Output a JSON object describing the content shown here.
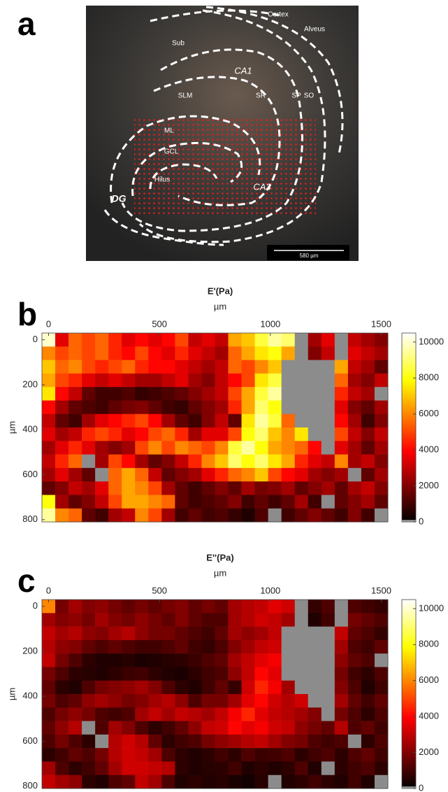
{
  "panel_a": {
    "letter": "a",
    "labels": [
      "Cortex",
      "Alveus",
      "Sub",
      "CA1",
      "SLM",
      "SR",
      "SP",
      "SO",
      "ML",
      "GCL",
      "Hilus",
      "CA3",
      "DG"
    ],
    "scale_bar": "580 µm"
  },
  "chart_data": [
    {
      "type": "heatmap",
      "letter": "b",
      "title": "E'(Pa)",
      "xlabel": "µm",
      "ylabel": "µm",
      "x": [
        0,
        60,
        120,
        180,
        240,
        300,
        360,
        420,
        480,
        540,
        600,
        660,
        720,
        780,
        840,
        900,
        960,
        1020,
        1080,
        1140,
        1200,
        1260,
        1320,
        1380,
        1440,
        1500
      ],
      "y": [
        0,
        60,
        120,
        180,
        240,
        300,
        360,
        420,
        480,
        540,
        600,
        660,
        720,
        780
      ],
      "values": [
        [
          10000,
          3500,
          5500,
          5000,
          5500,
          4500,
          3500,
          4000,
          3500,
          4000,
          5000,
          3000,
          3500,
          3000,
          6500,
          7000,
          8500,
          9500,
          9000,
          null,
          2500,
          3500,
          null,
          3000,
          2500,
          2000
        ],
        [
          6000,
          5000,
          5500,
          5000,
          5500,
          4500,
          4000,
          5000,
          4000,
          3500,
          4500,
          3500,
          3000,
          2500,
          5500,
          6500,
          7500,
          8000,
          6500,
          null,
          2000,
          3000,
          null,
          3500,
          3000,
          2500
        ],
        [
          7000,
          5500,
          6000,
          5000,
          4500,
          5000,
          5500,
          4500,
          4000,
          4000,
          3500,
          3000,
          2500,
          3000,
          5500,
          5000,
          6000,
          7000,
          null,
          null,
          null,
          null,
          6500,
          3000,
          2500,
          1500
        ],
        [
          6500,
          5000,
          4500,
          3500,
          3000,
          3500,
          3000,
          2500,
          2500,
          3000,
          3500,
          2500,
          2000,
          3000,
          4000,
          5000,
          7500,
          8500,
          null,
          null,
          null,
          null,
          5500,
          2500,
          2000,
          3000
        ],
        [
          7500,
          4000,
          3000,
          1500,
          1000,
          1000,
          1200,
          800,
          1000,
          1200,
          1500,
          2000,
          2500,
          3000,
          5000,
          6500,
          8500,
          9500,
          null,
          null,
          null,
          null,
          4500,
          3000,
          2500,
          null
        ],
        [
          4000,
          2500,
          1500,
          1200,
          1000,
          1500,
          1800,
          2000,
          1500,
          1000,
          800,
          1500,
          2000,
          2500,
          4500,
          6500,
          9000,
          8000,
          null,
          null,
          null,
          null,
          3500,
          2000,
          1500,
          2500
        ],
        [
          3000,
          1500,
          1000,
          2500,
          3500,
          4000,
          4500,
          5000,
          4000,
          2500,
          1500,
          1000,
          2000,
          3000,
          1500,
          7500,
          9500,
          8500,
          5500,
          null,
          null,
          null,
          4000,
          2500,
          1000,
          2000
        ],
        [
          3500,
          2500,
          3000,
          4500,
          5000,
          4500,
          3500,
          4000,
          5000,
          5500,
          4500,
          2500,
          3500,
          3500,
          5000,
          8000,
          9000,
          7000,
          6000,
          7500,
          null,
          null,
          5000,
          3000,
          2000,
          3000
        ],
        [
          2500,
          3500,
          4500,
          3500,
          2500,
          2000,
          2500,
          5000,
          6000,
          5000,
          6000,
          5500,
          5000,
          6000,
          8500,
          9500,
          8000,
          6500,
          6000,
          5500,
          4000,
          null,
          3500,
          2500,
          1500,
          2500
        ],
        [
          3000,
          4500,
          5500,
          null,
          2500,
          5000,
          4000,
          2500,
          1500,
          2000,
          3000,
          4500,
          6000,
          7000,
          9000,
          8000,
          9000,
          7500,
          6500,
          4500,
          3500,
          3000,
          6000,
          2500,
          3000,
          2000
        ],
        [
          2500,
          3500,
          2500,
          1500,
          null,
          5500,
          6500,
          5500,
          3000,
          1500,
          2000,
          2500,
          3500,
          4500,
          5500,
          6000,
          7000,
          5000,
          4000,
          3500,
          2500,
          2000,
          2500,
          null,
          1500,
          2500
        ],
        [
          1500,
          2000,
          3000,
          2500,
          3500,
          5500,
          6500,
          6000,
          5000,
          2500,
          1500,
          1000,
          1500,
          2000,
          1500,
          2500,
          1800,
          2000,
          2500,
          1500,
          2000,
          2500,
          1500,
          2500,
          3000,
          2000
        ],
        [
          8000,
          2500,
          1500,
          2000,
          3000,
          5000,
          6500,
          6500,
          6000,
          5500,
          1500,
          1000,
          1200,
          1500,
          2000,
          1000,
          1500,
          1000,
          1500,
          2500,
          1000,
          null,
          1500,
          2000,
          2500,
          1500
        ],
        [
          9500,
          6000,
          5500,
          1500,
          1000,
          2500,
          3000,
          6000,
          5000,
          2500,
          1000,
          1500,
          1000,
          1200,
          800,
          500,
          1200,
          null,
          1000,
          1500,
          2000,
          1500,
          1000,
          2000,
          1000,
          null
        ]
      ],
      "xlim": [
        -30,
        1530
      ],
      "ylim": [
        -30,
        810
      ],
      "xticks": [
        0,
        500,
        1000,
        1500
      ],
      "yticks": [
        0,
        200,
        400,
        600,
        800
      ],
      "colorbar": {
        "lim": [
          0,
          10500
        ],
        "ticks": [
          0,
          2000,
          4000,
          6000,
          8000,
          10000
        ]
      },
      "colormap": "hot",
      "missing_color": "#8c8c8c"
    },
    {
      "type": "heatmap",
      "letter": "c",
      "title": "E''(Pa)",
      "xlabel": "µm",
      "ylabel": "µm",
      "x": [
        0,
        60,
        120,
        180,
        240,
        300,
        360,
        420,
        480,
        540,
        600,
        660,
        720,
        780,
        840,
        900,
        960,
        1020,
        1080,
        1140,
        1200,
        1260,
        1320,
        1380,
        1440,
        1500
      ],
      "y": [
        0,
        60,
        120,
        180,
        240,
        300,
        360,
        420,
        480,
        540,
        600,
        660,
        720,
        780
      ],
      "values": [
        [
          6000,
          1800,
          2500,
          2000,
          2200,
          1800,
          1500,
          1800,
          1500,
          1800,
          2000,
          1500,
          1800,
          1500,
          2500,
          2800,
          3000,
          3500,
          3200,
          null,
          800,
          1200,
          null,
          1200,
          1000,
          800
        ],
        [
          2500,
          2000,
          2200,
          1800,
          2500,
          2000,
          1800,
          2200,
          1800,
          1500,
          2000,
          1500,
          1200,
          1200,
          2500,
          2800,
          3200,
          3000,
          2500,
          null,
          500,
          1000,
          null,
          1800,
          1500,
          1200
        ],
        [
          3000,
          2500,
          2800,
          2200,
          2000,
          2500,
          2800,
          2200,
          1800,
          1800,
          1500,
          1200,
          1000,
          1500,
          2500,
          2200,
          2500,
          3000,
          null,
          null,
          null,
          null,
          3000,
          1500,
          1200,
          800
        ],
        [
          2800,
          2200,
          2000,
          1500,
          1200,
          1500,
          1200,
          1000,
          1000,
          1200,
          1500,
          1000,
          800,
          1200,
          2000,
          2500,
          3000,
          3200,
          null,
          null,
          null,
          null,
          2500,
          1200,
          1000,
          1500
        ],
        [
          3000,
          1800,
          1200,
          700,
          500,
          500,
          600,
          400,
          500,
          600,
          700,
          900,
          1200,
          1500,
          2500,
          3000,
          3500,
          3800,
          null,
          null,
          null,
          null,
          2200,
          1500,
          1200,
          null
        ],
        [
          1800,
          1200,
          700,
          600,
          500,
          700,
          900,
          1000,
          700,
          500,
          400,
          700,
          1000,
          1200,
          2200,
          3000,
          4000,
          3500,
          null,
          null,
          null,
          null,
          1800,
          1000,
          700,
          1200
        ],
        [
          1500,
          700,
          500,
          1200,
          1800,
          2000,
          2200,
          2500,
          2000,
          1200,
          700,
          500,
          1000,
          1500,
          800,
          3200,
          4500,
          3800,
          2500,
          null,
          null,
          null,
          2000,
          1200,
          500,
          1000
        ],
        [
          1800,
          1200,
          1500,
          2200,
          2500,
          2200,
          1800,
          2000,
          2500,
          2800,
          2200,
          1200,
          1800,
          1800,
          2500,
          3500,
          4000,
          3200,
          2800,
          3200,
          null,
          null,
          2500,
          1500,
          1000,
          1500
        ],
        [
          1200,
          1800,
          2200,
          1800,
          1200,
          1000,
          1200,
          2500,
          3000,
          2500,
          3000,
          2800,
          2500,
          3000,
          3800,
          4500,
          3500,
          3000,
          2800,
          2500,
          2000,
          null,
          1800,
          1200,
          700,
          1200
        ],
        [
          1500,
          2200,
          2800,
          null,
          1200,
          2500,
          2000,
          1200,
          700,
          1000,
          1500,
          2200,
          3000,
          3200,
          4000,
          3500,
          3800,
          3200,
          3000,
          2200,
          1800,
          1500,
          2800,
          1200,
          1500,
          1000
        ],
        [
          1200,
          1800,
          1200,
          700,
          null,
          2800,
          3200,
          2800,
          1500,
          700,
          1000,
          1200,
          1800,
          2200,
          2500,
          2800,
          3000,
          2500,
          2000,
          1800,
          1200,
          1000,
          1200,
          null,
          700,
          1200
        ],
        [
          700,
          1000,
          1500,
          1200,
          1800,
          2800,
          3200,
          3000,
          2500,
          1200,
          700,
          500,
          700,
          1000,
          700,
          1200,
          900,
          1000,
          1200,
          700,
          1000,
          1200,
          700,
          1200,
          1500,
          1000
        ],
        [
          2500,
          1200,
          700,
          1000,
          1500,
          2500,
          3200,
          3200,
          3000,
          2800,
          700,
          500,
          600,
          700,
          1000,
          500,
          700,
          500,
          700,
          1200,
          500,
          null,
          700,
          1000,
          1200,
          700
        ],
        [
          3000,
          2500,
          2200,
          700,
          500,
          1200,
          1500,
          3000,
          2500,
          1200,
          500,
          700,
          500,
          600,
          400,
          300,
          600,
          null,
          500,
          700,
          1000,
          700,
          500,
          1000,
          500,
          null
        ]
      ],
      "xlim": [
        -30,
        1530
      ],
      "ylim": [
        -30,
        810
      ],
      "xticks": [
        0,
        500,
        1000,
        1500
      ],
      "yticks": [
        0,
        200,
        400,
        600,
        800
      ],
      "colorbar": {
        "lim": [
          0,
          10500
        ],
        "ticks": [
          0,
          2000,
          4000,
          6000,
          8000,
          10000
        ]
      },
      "colormap": "hot",
      "missing_color": "#8c8c8c"
    }
  ]
}
